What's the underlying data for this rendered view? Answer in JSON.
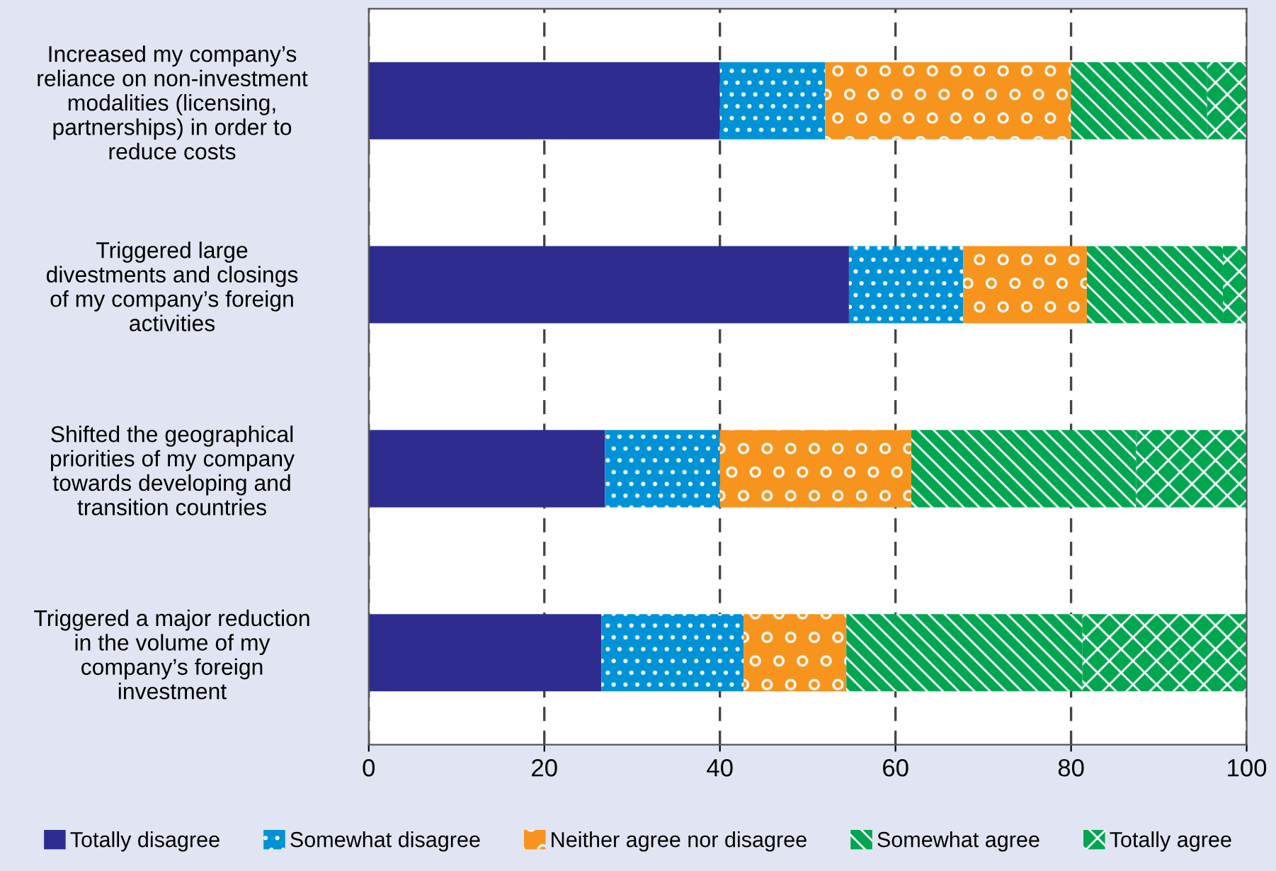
{
  "chart_data": {
    "type": "bar",
    "orientation": "horizontal",
    "stacked": true,
    "categories": [
      "Increased my company’s\nreliance on non-investment\nmodalities (licensing,\npartnerships) in order to\nreduce costs",
      "Triggered large\ndivestments and closings\nof my company’s foreign\nactivities",
      "Shifted the geographical\npriorities of my company\ntowards developing and\ntransition countries",
      "Triggered a major reduction\nin the volume of my\ncompany’s foreign\ninvestment"
    ],
    "series": [
      {
        "name": "Totally disagree",
        "color": "#2e2d8f",
        "values": [
          40,
          54.7,
          26.9,
          26.5
        ]
      },
      {
        "name": "Somewhat disagree",
        "color": "#0092d6",
        "values": [
          12,
          13,
          13.1,
          16.2
        ]
      },
      {
        "name": "Neither agree nor disagree",
        "color": "#f7941d",
        "values": [
          28,
          14.1,
          21.8,
          11.7
        ]
      },
      {
        "name": "Somewhat agree",
        "color": "#00a650",
        "values": [
          15.5,
          15.5,
          25.6,
          26.9
        ]
      },
      {
        "name": "Totally agree",
        "color": "#00a650",
        "values": [
          4.5,
          2.7,
          12.6,
          18.9
        ]
      }
    ],
    "xlim": [
      0,
      100
    ],
    "xticks": [
      0,
      20,
      40,
      60,
      80,
      100
    ],
    "grid": "x",
    "legend": "bottom"
  }
}
